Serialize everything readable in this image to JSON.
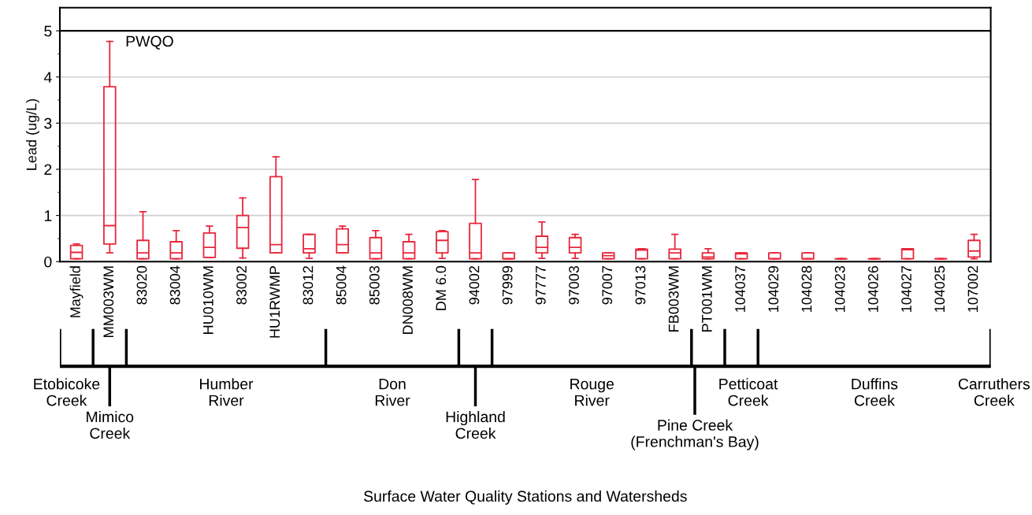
{
  "chart_data": {
    "type": "box",
    "ylabel": "Lead (ug/L)",
    "categories": [
      "Mayfield",
      "MM003WM",
      "83020",
      "83004",
      "HU010WM",
      "83002",
      "HU1RWMP",
      "83012",
      "85004",
      "85003",
      "DN008WM",
      "DM 6.0",
      "94002",
      "97999",
      "97777",
      "97003",
      "97007",
      "97013",
      "FB003WM",
      "PT001WM",
      "104037",
      "104029",
      "104028",
      "104023",
      "104026",
      "104027",
      "104025",
      "107002"
    ],
    "series": [
      {
        "color": "#e8283c",
        "boxes": [
          {
            "low": 0.06,
            "q1": 0.06,
            "median": 0.2,
            "q3": 0.35,
            "high": 0.38
          },
          {
            "low": 0.19,
            "q1": 0.38,
            "median": 0.78,
            "q3": 3.79,
            "high": 4.77
          },
          {
            "low": 0.06,
            "q1": 0.06,
            "median": 0.19,
            "q3": 0.46,
            "high": 1.08
          },
          {
            "low": 0.06,
            "q1": 0.06,
            "median": 0.19,
            "q3": 0.43,
            "high": 0.67
          },
          {
            "low": 0.09,
            "q1": 0.09,
            "median": 0.31,
            "q3": 0.62,
            "high": 0.77
          },
          {
            "low": 0.08,
            "q1": 0.29,
            "median": 0.74,
            "q3": 1.0,
            "high": 1.38
          },
          {
            "low": 0.19,
            "q1": 0.19,
            "median": 0.37,
            "q3": 1.84,
            "high": 2.27
          },
          {
            "low": 0.07,
            "q1": 0.19,
            "median": 0.28,
            "q3": 0.59,
            "high": 0.59
          },
          {
            "low": 0.19,
            "q1": 0.19,
            "median": 0.37,
            "q3": 0.71,
            "high": 0.77
          },
          {
            "low": 0.06,
            "q1": 0.06,
            "median": 0.19,
            "q3": 0.52,
            "high": 0.67
          },
          {
            "low": 0.06,
            "q1": 0.06,
            "median": 0.19,
            "q3": 0.43,
            "high": 0.59
          },
          {
            "low": 0.07,
            "q1": 0.19,
            "median": 0.46,
            "q3": 0.65,
            "high": 0.67
          },
          {
            "low": 0.06,
            "q1": 0.06,
            "median": 0.19,
            "q3": 0.83,
            "high": 1.78
          },
          {
            "low": 0.06,
            "q1": 0.06,
            "median": 0.06,
            "q3": 0.19,
            "high": 0.19
          },
          {
            "low": 0.07,
            "q1": 0.19,
            "median": 0.31,
            "q3": 0.55,
            "high": 0.86
          },
          {
            "low": 0.07,
            "q1": 0.19,
            "median": 0.31,
            "q3": 0.52,
            "high": 0.59
          },
          {
            "low": 0.06,
            "q1": 0.06,
            "median": 0.13,
            "q3": 0.19,
            "high": 0.19
          },
          {
            "low": 0.06,
            "q1": 0.06,
            "median": 0.25,
            "q3": 0.27,
            "high": 0.28
          },
          {
            "low": 0.06,
            "q1": 0.06,
            "median": 0.19,
            "q3": 0.27,
            "high": 0.59
          },
          {
            "low": 0.06,
            "q1": 0.06,
            "median": 0.1,
            "q3": 0.19,
            "high": 0.28
          },
          {
            "low": 0.06,
            "q1": 0.06,
            "median": 0.17,
            "q3": 0.19,
            "high": 0.19
          },
          {
            "low": 0.06,
            "q1": 0.06,
            "median": 0.06,
            "q3": 0.19,
            "high": 0.19
          },
          {
            "low": 0.06,
            "q1": 0.06,
            "median": 0.06,
            "q3": 0.19,
            "high": 0.19
          },
          {
            "low": 0.06,
            "q1": 0.06,
            "median": 0.06,
            "q3": 0.06,
            "high": 0.06
          },
          {
            "low": 0.06,
            "q1": 0.06,
            "median": 0.06,
            "q3": 0.06,
            "high": 0.06
          },
          {
            "low": 0.06,
            "q1": 0.06,
            "median": 0.26,
            "q3": 0.28,
            "high": 0.28
          },
          {
            "low": 0.06,
            "q1": 0.06,
            "median": 0.06,
            "q3": 0.06,
            "high": 0.06
          },
          {
            "low": 0.06,
            "q1": 0.1,
            "median": 0.23,
            "q3": 0.46,
            "high": 0.59
          }
        ]
      }
    ],
    "ylim": [
      0,
      5.5
    ],
    "yticks": [
      0,
      {
        "value": 0.5,
        "label": null
      },
      1,
      {
        "value": 1.5,
        "label": null
      },
      2,
      {
        "value": 2.5,
        "label": null
      },
      3,
      {
        "value": 3.5,
        "label": null
      },
      4,
      {
        "value": 4.5,
        "label": null
      },
      5
    ],
    "grid": "y",
    "ref_lines": [
      {
        "axis": "y",
        "value": 5,
        "label": "PWQO",
        "color": "#000000"
      }
    ],
    "annotations": [
      "Etobicoke\nCreek",
      "Mimico\nCreek",
      "Humber\nRiver",
      "Don\nRiver",
      "Highland\nCreek",
      "Rouge\nRiver",
      "Pine Creek\n(Frenchman's Bay)",
      "Petticoat\nCreek",
      "Duffins\nCreek",
      "Carruthers\nCreek",
      "Surface Water Quality Stations and Watersheds"
    ]
  }
}
